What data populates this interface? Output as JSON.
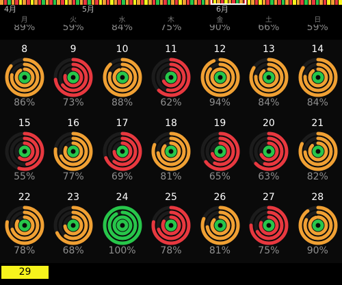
{
  "months": [
    {
      "label": "4月"
    },
    {
      "label": "5月"
    },
    {
      "label": "6月"
    }
  ],
  "weekdays": [
    "月",
    "火",
    "水",
    "木",
    "金",
    "土",
    "日"
  ],
  "prev_week_percents": [
    "89%",
    "59%",
    "84%",
    "75%",
    "90%",
    "66%",
    "59%"
  ],
  "colors": {
    "red": "#e8383f",
    "orange": "#f0a033",
    "green": "#27c64a",
    "yellow": "#f7f41c",
    "track": "#1c1c1c"
  },
  "weeks": [
    {
      "days": [
        {
          "day": "8",
          "pct": "86%",
          "tone": "orange"
        },
        {
          "day": "9",
          "pct": "73%",
          "tone": "red"
        },
        {
          "day": "10",
          "pct": "88%",
          "tone": "orange"
        },
        {
          "day": "11",
          "pct": "62%",
          "tone": "red"
        },
        {
          "day": "12",
          "pct": "94%",
          "tone": "orange"
        },
        {
          "day": "13",
          "pct": "84%",
          "tone": "orange"
        },
        {
          "day": "14",
          "pct": "84%",
          "tone": "orange"
        }
      ]
    },
    {
      "days": [
        {
          "day": "15",
          "pct": "55%",
          "tone": "red"
        },
        {
          "day": "16",
          "pct": "77%",
          "tone": "orange"
        },
        {
          "day": "17",
          "pct": "69%",
          "tone": "red"
        },
        {
          "day": "18",
          "pct": "81%",
          "tone": "orange"
        },
        {
          "day": "19",
          "pct": "65%",
          "tone": "red"
        },
        {
          "day": "20",
          "pct": "63%",
          "tone": "red"
        },
        {
          "day": "21",
          "pct": "82%",
          "tone": "orange"
        }
      ]
    },
    {
      "days": [
        {
          "day": "22",
          "pct": "78%",
          "tone": "orange"
        },
        {
          "day": "23",
          "pct": "68%",
          "tone": "orange"
        },
        {
          "day": "24",
          "pct": "100%",
          "tone": "green"
        },
        {
          "day": "25",
          "pct": "78%",
          "tone": "red"
        },
        {
          "day": "26",
          "pct": "81%",
          "tone": "orange"
        },
        {
          "day": "27",
          "pct": "75%",
          "tone": "red"
        },
        {
          "day": "28",
          "pct": "90%",
          "tone": "orange"
        }
      ]
    }
  ],
  "today": {
    "day": "29"
  }
}
